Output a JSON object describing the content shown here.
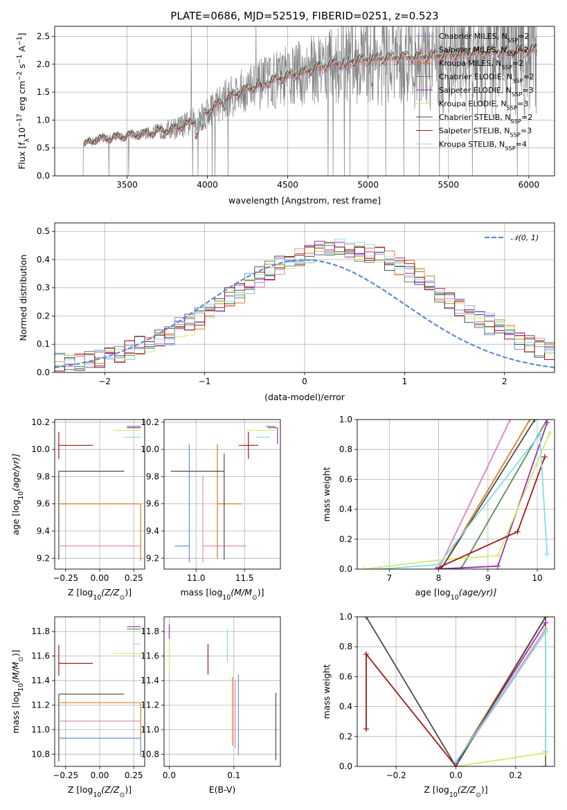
{
  "colors": {
    "Chabrier MILES": "#6a8fd8",
    "Salpeter MILES": "#e887c0",
    "Kroupa MILES": "#e07a1f",
    "Chabrier ELODIE": "#5e8a5e",
    "Salpeter ELODIE": "#9a2fb0",
    "Kroupa ELODIE": "#d6e86a",
    "Chabrier STELIB": "#4a4a4a",
    "Salpeter STELIB": "#a01818",
    "Kroupa STELIB": "#86dbe6",
    "data": "#808080",
    "normal": "#5b8bd5"
  },
  "chart_data": [
    {
      "id": "spectrum",
      "type": "line",
      "title": "PLATE=0686, MJD=52519, FIBERID=0251, z=0.523",
      "xlabel": "wavelength [Angstrom, rest frame]",
      "ylabel": "Flux [f",
      "ylabel_sub": "λ",
      "ylabel_rest": "10",
      "ylabel_sup1": "−17",
      "ylabel_mid": " erg cm",
      "ylabel_sup2": "−2",
      "ylabel_mid2": " s",
      "ylabel_sup3": "−1",
      "ylabel_mid3": " A",
      "ylabel_sup4": "−1",
      "ylabel_end": "]",
      "xlim": [
        3050,
        6160
      ],
      "ylim": [
        0,
        2.68
      ],
      "xticks": [
        3500,
        4000,
        4500,
        5000,
        5500,
        6000
      ],
      "yticks": [
        0.0,
        0.5,
        1.0,
        1.5,
        2.0,
        2.5
      ],
      "legend_position": "right",
      "legend": [
        {
          "name": "Chabrier MILES, N",
          "sub": "SSP",
          "val": "=2"
        },
        {
          "name": "Salpeter MILES, N",
          "sub": "SSP",
          "val": "=2"
        },
        {
          "name": "Kroupa MILES, N",
          "sub": "SSP",
          "val": "=2"
        },
        {
          "name": "Chabrier ELODIE, N",
          "sub": "SSP",
          "val": "=2"
        },
        {
          "name": "Salpeter ELODIE, N",
          "sub": "SSP",
          "val": "=3"
        },
        {
          "name": "Kroupa ELODIE, N",
          "sub": "SSP",
          "val": "=3"
        },
        {
          "name": "Chabrier STELIB, N",
          "sub": "SSP",
          "val": "=2"
        },
        {
          "name": "Salpeter STELIB, N",
          "sub": "SSP",
          "val": "=3"
        },
        {
          "name": "Kroupa STELIB, N",
          "sub": "SSP",
          "val": "=4"
        }
      ],
      "continuum_knots": {
        "x": [
          3230,
          3300,
          3400,
          3500,
          3600,
          3700,
          3800,
          3900,
          4000,
          4100,
          4200,
          4300,
          4400,
          4500,
          4600,
          4700,
          4800,
          4900,
          5000,
          5100,
          5200,
          5300,
          5400,
          5500,
          5600,
          5700,
          5800,
          5900,
          6000
        ],
        "y": [
          0.55,
          0.65,
          0.68,
          0.72,
          0.75,
          0.8,
          0.85,
          0.95,
          1.15,
          1.35,
          1.5,
          1.6,
          1.7,
          1.78,
          1.85,
          1.95,
          2.0,
          2.05,
          2.08,
          2.1,
          2.12,
          2.12,
          2.14,
          2.15,
          2.18,
          2.2,
          2.22,
          2.22,
          2.25
        ]
      },
      "data_x_range": [
        3220,
        6050
      ]
    },
    {
      "id": "residuals",
      "type": "line",
      "xlabel": "(data-model)/error",
      "ylabel": "Normed distribution",
      "xlim": [
        -2.5,
        2.5
      ],
      "ylim": [
        0,
        0.53
      ],
      "xticks": [
        -2,
        -1,
        0,
        1,
        2
      ],
      "xtick_labels": [
        "−2",
        "−1",
        "0",
        "1",
        "2"
      ],
      "yticks": [
        0.0,
        0.1,
        0.2,
        0.3,
        0.4,
        0.5
      ],
      "legend": "𝒩(0, 1)",
      "legend_position": "top-right",
      "bin_width": 0.1,
      "bins_start": -2.5,
      "histogram_peak": 0.4
    },
    {
      "id": "age-vs-Z",
      "type": "scatter",
      "xlabel": "Z [log",
      "xlabel_sub": "10",
      "xlabel_end": "(Z/Z",
      "xlabel_sun": "⊙",
      "xlabel_close": ")]",
      "ylabel": "age  [log",
      "ylabel_sub": "10",
      "ylabel_end": "(age/yr)]",
      "xlim": [
        -0.33,
        0.33
      ],
      "ylim": [
        9.12,
        10.22
      ],
      "xticks": [
        -0.25,
        0.0,
        0.25
      ],
      "xtick_labels": [
        "−0.25",
        "0.00",
        "0.25"
      ],
      "yticks": [
        9.2,
        9.4,
        9.6,
        9.8,
        10.0,
        10.2
      ],
      "points": [
        {
          "model": "Salpeter STELIB",
          "x": -0.3,
          "y": 10.03,
          "xerr": [
            0.0,
            0.25
          ],
          "yerr": [
            0.1,
            0.1
          ]
        },
        {
          "model": "Chabrier STELIB",
          "x": -0.3,
          "y": 9.84,
          "xerr": [
            0.0,
            0.48
          ],
          "yerr": [
            0.65,
            0.0
          ]
        },
        {
          "model": "Kroupa MILES",
          "x": 0.3,
          "y": 9.6,
          "xerr": [
            0.6,
            0.0
          ],
          "yerr": [
            0.42,
            0.0
          ]
        },
        {
          "model": "Salpeter MILES",
          "x": 0.3,
          "y": 9.29,
          "xerr": [
            0.6,
            0.0
          ],
          "yerr": [
            0.0,
            0.0
          ]
        },
        {
          "model": "Salpeter ELODIE",
          "x": 0.3,
          "y": 10.16,
          "xerr": [
            0.1,
            0.0
          ],
          "yerr": [
            0.0,
            0.0
          ]
        },
        {
          "model": "Kroupa ELODIE",
          "x": 0.3,
          "y": 10.14,
          "xerr": [
            0.2,
            0.0
          ],
          "yerr": [
            0.0,
            0.0
          ]
        },
        {
          "model": "Kroupa STELIB",
          "x": 0.3,
          "y": 10.09,
          "xerr": [
            0.12,
            0.0
          ],
          "yerr": [
            0.0,
            0.0
          ]
        },
        {
          "model": "Chabrier ELODIE",
          "x": 0.3,
          "y": 10.17,
          "xerr": [
            0.1,
            0.0
          ],
          "yerr": [
            0.0,
            0.0
          ]
        }
      ]
    },
    {
      "id": "age-vs-mass",
      "type": "scatter",
      "xlabel": "mass [log",
      "xlabel_sub": "10",
      "xlabel_end": "(M/M",
      "xlabel_sun": "⊙",
      "xlabel_close": ")]",
      "xlim": [
        10.67,
        11.87
      ],
      "ylim": [
        9.12,
        10.22
      ],
      "xticks": [
        11.0,
        11.5
      ],
      "xtick_labels": [
        "11.0",
        "11.5"
      ],
      "yticks": [
        9.2,
        9.4,
        9.6,
        9.8,
        10.0,
        10.2
      ],
      "points": [
        {
          "model": "Chabrier MILES",
          "x": 10.93,
          "y": 9.29,
          "xerr": [
            0.15,
            0.0
          ],
          "yerr": [
            0.12,
            0.75
          ]
        },
        {
          "model": "Salpeter MILES",
          "x": 11.07,
          "y": 9.29,
          "xerr": [
            0.0,
            0.45
          ],
          "yerr": [
            0.12,
            0.52
          ]
        },
        {
          "model": "Kroupa MILES",
          "x": 11.22,
          "y": 9.6,
          "xerr": [
            0.0,
            0.25
          ],
          "yerr": [
            0.4,
            0.44
          ]
        },
        {
          "model": "Chabrier STELIB",
          "x": 11.29,
          "y": 9.84,
          "xerr": [
            0.55,
            0.0
          ],
          "yerr": [
            0.65,
            0.13
          ]
        },
        {
          "model": "Salpeter STELIB",
          "x": 11.54,
          "y": 10.03,
          "xerr": [
            0.1,
            0.1
          ],
          "yerr": [
            0.1,
            0.1
          ]
        },
        {
          "model": "Kroupa ELODIE",
          "x": 11.62,
          "y": 10.14,
          "xerr": [
            0.1,
            0.2
          ],
          "yerr": [
            0.0,
            0.0
          ]
        },
        {
          "model": "Kroupa STELIB",
          "x": 11.7,
          "y": 10.09,
          "xerr": [
            0.08,
            0.06
          ],
          "yerr": [
            0.0,
            0.0
          ]
        },
        {
          "model": "Salpeter ELODIE",
          "x": 11.84,
          "y": 10.16,
          "xerr": [
            0.1,
            0.0
          ],
          "yerr": [
            0.12,
            0.0
          ]
        },
        {
          "model": "Chabrier ELODIE",
          "x": 11.82,
          "y": 10.17,
          "xerr": [
            0.1,
            0.0
          ],
          "yerr": [
            0.0,
            0.0
          ]
        }
      ]
    },
    {
      "id": "weight-vs-age",
      "type": "line",
      "xlabel": "age  [log",
      "xlabel_sub": "10",
      "xlabel_end": "(age/yr)]",
      "ylabel": "mass weight",
      "xlim": [
        6.35,
        10.35
      ],
      "ylim": [
        0,
        1
      ],
      "xticks": [
        7,
        8,
        9,
        10
      ],
      "yticks": [
        0.0,
        0.2,
        0.4,
        0.6,
        0.8,
        1.0
      ],
      "series": [
        {
          "model": "Chabrier MILES",
          "x": [
            8.0,
            9.45
          ],
          "y": [
            0.0,
            1.0
          ]
        },
        {
          "model": "Salpeter MILES",
          "x": [
            8.0,
            9.45
          ],
          "y": [
            0.0,
            1.0
          ]
        },
        {
          "model": "Kroupa MILES",
          "x": [
            8.05,
            9.85
          ],
          "y": [
            0.0,
            1.0
          ]
        },
        {
          "model": "Chabrier ELODIE",
          "x": [
            8.45,
            10.2
          ],
          "y": [
            0.0,
            1.0
          ]
        },
        {
          "model": "Salpeter ELODIE",
          "x": [
            7.95,
            9.2,
            10.2
          ],
          "y": [
            0.0,
            0.02,
            0.98
          ]
        },
        {
          "model": "Kroupa ELODIE",
          "x": [
            6.5,
            8.0,
            9.2,
            10.25
          ],
          "y": [
            0.0,
            0.06,
            0.09,
            0.91
          ]
        },
        {
          "model": "Chabrier STELIB",
          "x": [
            8.05,
            9.95
          ],
          "y": [
            0.0,
            1.0
          ]
        },
        {
          "model": "Salpeter STELIB",
          "x": [
            8.0,
            9.6,
            10.15
          ],
          "y": [
            0.01,
            0.25,
            0.75
          ]
        },
        {
          "model": "Kroupa STELIB",
          "x": [
            6.8,
            8.0,
            10.05,
            10.2
          ],
          "y": [
            0.0,
            0.03,
            0.9,
            0.1
          ]
        }
      ]
    },
    {
      "id": "mass-vs-Z",
      "type": "scatter",
      "xlabel": "Z [log",
      "xlabel_sub": "10",
      "xlabel_end": "(Z/Z",
      "xlabel_sun": "⊙",
      "xlabel_close": ")]",
      "ylabel": "mass [log",
      "ylabel_sub": "10",
      "ylabel_end": "(M/M",
      "ylabel_sun": "⊙",
      "ylabel_close": ")]",
      "xlim": [
        -0.33,
        0.33
      ],
      "ylim": [
        10.7,
        11.92
      ],
      "xticks": [
        -0.25,
        0.0,
        0.25
      ],
      "xtick_labels": [
        "−0.25",
        "0.00",
        "0.25"
      ],
      "yticks": [
        10.8,
        11.0,
        11.2,
        11.4,
        11.6,
        11.8
      ],
      "points": [
        {
          "model": "Salpeter STELIB",
          "x": -0.3,
          "y": 11.54,
          "xerr": [
            0.0,
            0.25
          ],
          "yerr": [
            0.1,
            0.15
          ]
        },
        {
          "model": "Chabrier STELIB",
          "x": -0.3,
          "y": 11.29,
          "xerr": [
            0.0,
            0.48
          ],
          "yerr": [
            0.55,
            0.0
          ]
        },
        {
          "model": "Kroupa MILES",
          "x": 0.3,
          "y": 11.22,
          "xerr": [
            0.6,
            0.0
          ],
          "yerr": [
            0.42,
            0.0
          ]
        },
        {
          "model": "Salpeter MILES",
          "x": 0.3,
          "y": 11.07,
          "xerr": [
            0.6,
            0.0
          ],
          "yerr": [
            0.0,
            0.0
          ]
        },
        {
          "model": "Chabrier MILES",
          "x": 0.3,
          "y": 10.93,
          "xerr": [
            0.6,
            0.0
          ],
          "yerr": [
            0.15,
            0.0
          ]
        },
        {
          "model": "Salpeter ELODIE",
          "x": 0.3,
          "y": 11.84,
          "xerr": [
            0.1,
            0.0
          ],
          "yerr": [
            0.0,
            0.0
          ]
        },
        {
          "model": "Chabrier ELODIE",
          "x": 0.3,
          "y": 11.82,
          "xerr": [
            0.1,
            0.0
          ],
          "yerr": [
            0.0,
            0.0
          ]
        },
        {
          "model": "Kroupa ELODIE",
          "x": 0.3,
          "y": 11.62,
          "xerr": [
            0.2,
            0.0
          ],
          "yerr": [
            0.0,
            0.0
          ]
        },
        {
          "model": "Kroupa STELIB",
          "x": 0.3,
          "y": 11.7,
          "xerr": [
            0.05,
            0.0
          ],
          "yerr": [
            0.0,
            0.0
          ]
        }
      ]
    },
    {
      "id": "mass-vs-ebv",
      "type": "scatter",
      "xlabel": "E(B-V)",
      "xlim": [
        -0.008,
        0.172
      ],
      "ylim": [
        10.7,
        11.92
      ],
      "xticks": [
        0.0,
        0.1
      ],
      "xtick_labels": [
        "0.0",
        "0.1"
      ],
      "yticks": [
        10.8,
        11.0,
        11.2,
        11.4,
        11.6,
        11.8
      ],
      "points": [
        {
          "model": "Salpeter ELODIE",
          "x": 0.0,
          "y": 11.8,
          "xerr": [
            0.0,
            0.0
          ],
          "yerr": [
            0.06,
            0.06
          ]
        },
        {
          "model": "Kroupa ELODIE",
          "x": 0.0,
          "y": 11.62,
          "xerr": [
            0.0,
            0.0
          ],
          "yerr": [
            0.15,
            0.12
          ]
        },
        {
          "model": "Salpeter STELIB",
          "x": 0.06,
          "y": 11.6,
          "xerr": [
            0.0,
            0.0
          ],
          "yerr": [
            0.15,
            0.1
          ]
        },
        {
          "model": "Kroupa STELIB",
          "x": 0.09,
          "y": 11.7,
          "xerr": [
            0.0,
            0.0
          ],
          "yerr": [
            0.15,
            0.12
          ]
        },
        {
          "model": "Kroupa MILES",
          "x": 0.098,
          "y": 11.15,
          "xerr": [
            0.0,
            0.0
          ],
          "yerr": [
            0.28,
            0.28
          ]
        },
        {
          "model": "Salpeter MILES",
          "x": 0.102,
          "y": 11.15,
          "xerr": [
            0.0,
            0.0
          ],
          "yerr": [
            0.3,
            0.25
          ]
        },
        {
          "model": "Chabrier MILES",
          "x": 0.107,
          "y": 11.12,
          "xerr": [
            0.0,
            0.0
          ],
          "yerr": [
            0.33,
            0.33
          ]
        },
        {
          "model": "Chabrier STELIB",
          "x": 0.165,
          "y": 11.02,
          "xerr": [
            0.0,
            0.0
          ],
          "yerr": [
            0.27,
            0.28
          ]
        }
      ]
    },
    {
      "id": "weight-vs-Z",
      "type": "line",
      "xlabel": "Z [log",
      "xlabel_sub": "10",
      "xlabel_end": "(Z/Z",
      "xlabel_sun": "⊙",
      "xlabel_close": ")]",
      "ylabel": "mass weight",
      "xlim": [
        -0.33,
        0.33
      ],
      "ylim": [
        0,
        1
      ],
      "xticks": [
        -0.2,
        0.0,
        0.2
      ],
      "xtick_labels": [
        "−0.2",
        "0.0",
        "0.2"
      ],
      "yticks": [
        0.0,
        0.2,
        0.4,
        0.6,
        0.8,
        1.0
      ],
      "series": [
        {
          "model": "Chabrier MILES",
          "x": [
            0.0,
            0.3,
            0.3
          ],
          "y": [
            0.02,
            0.9,
            0.0
          ]
        },
        {
          "model": "Salpeter MILES",
          "x": [
            0.0,
            0.3,
            0.3
          ],
          "y": [
            0.02,
            0.92,
            0.0
          ]
        },
        {
          "model": "Kroupa MILES",
          "x": [
            0.0,
            0.3,
            0.3
          ],
          "y": [
            0.02,
            1.0,
            0.0
          ]
        },
        {
          "model": "Chabrier ELODIE",
          "x": [
            0.0,
            0.3,
            0.3
          ],
          "y": [
            0.0,
            1.0,
            0.0
          ]
        },
        {
          "model": "Salpeter ELODIE",
          "x": [
            0.0,
            0.3
          ],
          "y": [
            0.02,
            0.96
          ]
        },
        {
          "model": "Kroupa ELODIE",
          "x": [
            0.0,
            0.3,
            0.3
          ],
          "y": [
            0.0,
            0.09,
            0.91
          ]
        },
        {
          "model": "Chabrier STELIB",
          "x": [
            -0.3,
            0.0,
            0.3
          ],
          "y": [
            1.0,
            0.0,
            1.0
          ]
        },
        {
          "model": "Salpeter STELIB",
          "x": [
            -0.3,
            -0.3,
            0.0
          ],
          "y": [
            0.25,
            0.75,
            0.0
          ]
        },
        {
          "model": "Kroupa STELIB",
          "x": [
            0.0,
            0.3,
            0.3
          ],
          "y": [
            0.03,
            0.9,
            0.1
          ]
        }
      ]
    }
  ]
}
